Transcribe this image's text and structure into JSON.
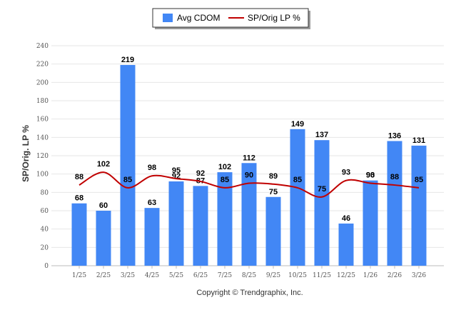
{
  "chart_data": {
    "type": "bar",
    "categories": [
      "1/25",
      "2/25",
      "3/25",
      "4/25",
      "5/25",
      "6/25",
      "7/25",
      "8/25",
      "9/25",
      "10/25",
      "11/25",
      "12/25",
      "1/26",
      "2/26",
      "3/26"
    ],
    "series": [
      {
        "name": "Avg CDOM",
        "kind": "bar",
        "color": "#4287f5",
        "values": [
          68,
          60,
          219,
          63,
          92,
          87,
          102,
          112,
          75,
          149,
          137,
          46,
          93,
          136,
          131
        ]
      },
      {
        "name": "SP/Orig LP %",
        "kind": "line",
        "color": "#c00000",
        "values": [
          88,
          102,
          85,
          98,
          95,
          92,
          85,
          90,
          89,
          85,
          75,
          93,
          90,
          88,
          85
        ]
      }
    ],
    "ylabel": "SP/Orig. LP %",
    "xlabel": "",
    "ylim": [
      0,
      240
    ],
    "yticks": [
      0,
      20,
      40,
      60,
      80,
      100,
      120,
      140,
      160,
      180,
      200,
      220,
      240
    ],
    "grid": true,
    "legend": "top-center"
  },
  "footer": {
    "copyright": "Copyright © Trendgraphix, Inc."
  }
}
